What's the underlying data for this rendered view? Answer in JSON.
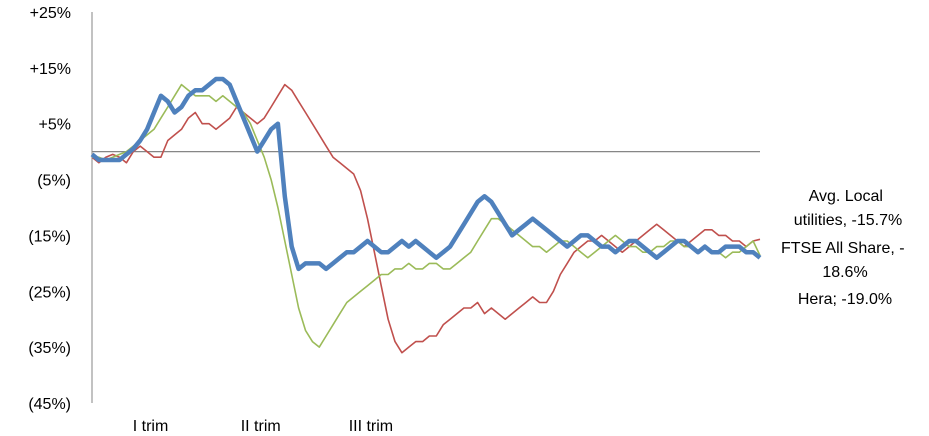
{
  "chart_data": {
    "type": "line",
    "y_ticks": [
      "+25%",
      "+15%",
      "+5%",
      "(5%)",
      "(15%)",
      "(25%)",
      "(35%)",
      "(45%)"
    ],
    "ylim": [
      -45,
      25
    ],
    "x_ticks": [
      "I trim",
      "II trim",
      "III trim"
    ],
    "x_tick_positions": [
      8.5,
      24.5,
      40.5
    ],
    "reference_line_y": 0,
    "grid": false,
    "series": [
      {
        "name": "Avg. Local utilities",
        "end_label": "Avg. Local utilities, -15.7%",
        "color": "#c0504d",
        "values": [
          -1,
          -2,
          -1,
          -0.5,
          -1,
          -2,
          0,
          1,
          0,
          -1,
          -1,
          2,
          3,
          4,
          6,
          7,
          5,
          5,
          4,
          5,
          6,
          8,
          7,
          6,
          5,
          6,
          8,
          10,
          12,
          11,
          9,
          7,
          5,
          3,
          1,
          -1,
          -2,
          -3,
          -4,
          -7,
          -12,
          -18,
          -24,
          -30,
          -34,
          -36,
          -35,
          -34,
          -34,
          -33,
          -33,
          -31,
          -30,
          -29,
          -28,
          -28,
          -27,
          -29,
          -28,
          -29,
          -30,
          -29,
          -28,
          -27,
          -26,
          -27,
          -27,
          -25,
          -22,
          -20,
          -18,
          -17,
          -16,
          -16,
          -15,
          -16,
          -17,
          -18,
          -17,
          -16,
          -15,
          -14,
          -13,
          -14,
          -15,
          -16,
          -17,
          -16,
          -15,
          -14,
          -14,
          -15,
          -15,
          -16,
          -16,
          -17,
          -16,
          -15.7
        ]
      },
      {
        "name": "FTSE All Share",
        "end_label": "FTSE All Share, -18.6%",
        "color": "#9bbb59",
        "values": [
          -1,
          -1,
          -1.5,
          -1,
          -0.5,
          0,
          1,
          2,
          3,
          4,
          6,
          8,
          10,
          12,
          11,
          10,
          10,
          10,
          9,
          10,
          9,
          8,
          7,
          5,
          2,
          -1,
          -5,
          -10,
          -16,
          -22,
          -28,
          -32,
          -34,
          -35,
          -33,
          -31,
          -29,
          -27,
          -26,
          -25,
          -24,
          -23,
          -22,
          -22,
          -21,
          -21,
          -20,
          -21,
          -21,
          -20,
          -20,
          -21,
          -21,
          -20,
          -19,
          -18,
          -16,
          -14,
          -12,
          -12,
          -13,
          -14,
          -15,
          -16,
          -17,
          -17,
          -18,
          -17,
          -16,
          -16,
          -17,
          -18,
          -19,
          -18,
          -17,
          -16,
          -15,
          -16,
          -17,
          -17,
          -18,
          -18,
          -17,
          -17,
          -16,
          -16,
          -17,
          -17,
          -18,
          -17,
          -18,
          -18,
          -19,
          -18,
          -18,
          -17,
          -16,
          -18.6
        ]
      },
      {
        "name": "Hera",
        "end_label": "Hera; -19.0%",
        "color": "#4f81bd",
        "values": [
          -0.5,
          -1.5,
          -1.5,
          -1.5,
          -1.5,
          -0.5,
          0.5,
          2,
          4,
          7,
          10,
          9,
          7,
          8,
          10,
          11,
          11,
          12,
          13,
          13,
          12,
          9,
          6,
          3,
          0,
          2,
          4,
          5,
          -8,
          -17,
          -21,
          -20,
          -20,
          -20,
          -21,
          -20,
          -19,
          -18,
          -18,
          -17,
          -16,
          -17,
          -18,
          -18,
          -17,
          -16,
          -17,
          -16,
          -17,
          -18,
          -19,
          -18,
          -17,
          -15,
          -13,
          -11,
          -9,
          -8,
          -9,
          -11,
          -13,
          -15,
          -14,
          -13,
          -12,
          -13,
          -14,
          -15,
          -16,
          -17,
          -16,
          -15,
          -15,
          -16,
          -17,
          -17,
          -18,
          -17,
          -16,
          -16,
          -17,
          -18,
          -19,
          -18,
          -17,
          -16,
          -16,
          -17,
          -18,
          -17,
          -18,
          -18,
          -17,
          -17,
          -17,
          -18,
          -18,
          -19
        ]
      }
    ]
  }
}
